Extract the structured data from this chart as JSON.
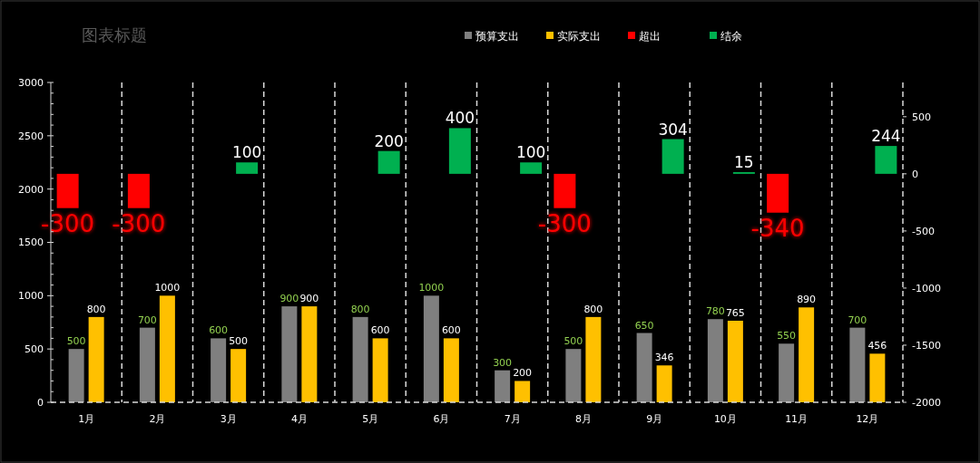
{
  "chart_data": {
    "type": "bar",
    "title": "图表标题",
    "categories": [
      "1月",
      "2月",
      "3月",
      "4月",
      "5月",
      "6月",
      "7月",
      "8月",
      "9月",
      "10月",
      "11月",
      "12月"
    ],
    "series": [
      {
        "name": "预算支出",
        "color": "#7f7f7f",
        "values": [
          500,
          700,
          600,
          900,
          800,
          1000,
          300,
          500,
          650,
          780,
          550,
          700
        ]
      },
      {
        "name": "实际支出",
        "color": "#ffc000",
        "values": [
          800,
          1000,
          500,
          900,
          600,
          600,
          200,
          800,
          346,
          765,
          890,
          456
        ]
      },
      {
        "name": "超出",
        "color": "#ff0000",
        "axis": "y2",
        "values": [
          -300,
          -300,
          null,
          null,
          null,
          null,
          null,
          -300,
          null,
          null,
          -340,
          null
        ]
      },
      {
        "name": "结余",
        "color": "#00b050",
        "axis": "y2",
        "values": [
          null,
          null,
          100,
          null,
          200,
          400,
          100,
          null,
          304,
          15,
          null,
          244
        ]
      }
    ],
    "ylim": [
      0,
      3000
    ],
    "yticks": [
      0,
      500,
      1000,
      1500,
      2000,
      2500,
      3000
    ],
    "y2lim": [
      -2000,
      800
    ],
    "y2ticks": [
      -2000,
      -1500,
      -1000,
      -500,
      0,
      500
    ],
    "grid": "x",
    "legend": "top",
    "data_labels": true
  }
}
